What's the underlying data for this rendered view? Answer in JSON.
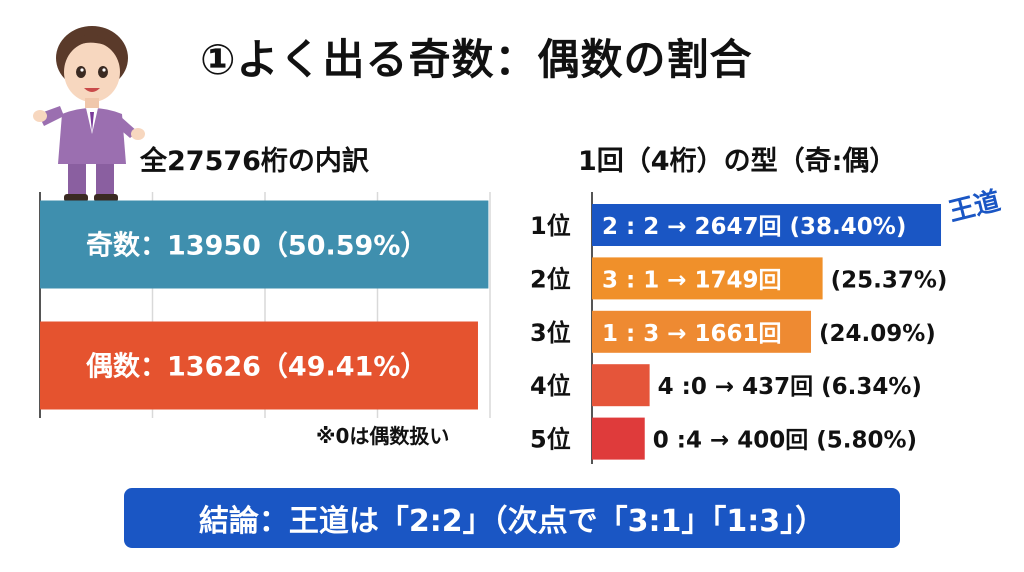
{
  "title": "①よく出る奇数：偶数の割合",
  "left_subtitle": "全27576桁の内訳",
  "right_subtitle": "1回（4桁）の型（奇:偶）",
  "note": "※0は偶数扱い",
  "badge": "王道",
  "conclusion": "結論：王道は「2:2」（次点で「3:1」「1:3」）",
  "colors": {
    "odd": "#3f8fae",
    "even": "#e5532f",
    "rank1": "#1a56c4",
    "rank2": "#f0902a",
    "rank3": "#ee8a32",
    "rank4": "#e5553a",
    "rank5": "#df3b3b",
    "conclusion_bg": "#1a56c4",
    "grid": "#d9d9d9"
  },
  "chart_data": [
    {
      "type": "bar",
      "orientation": "horizontal",
      "title": "全27576桁の内訳",
      "categories": [
        "奇数",
        "偶数"
      ],
      "values": [
        13950,
        13626
      ],
      "percent": [
        "50.59%",
        "49.41%"
      ],
      "labels": [
        "奇数：13950（50.59%）",
        "偶数：13626（49.41%）"
      ],
      "xlim": [
        0,
        14000
      ],
      "grid": true
    },
    {
      "type": "bar",
      "orientation": "horizontal",
      "title": "1回（4桁）の型（奇:偶）",
      "categories": [
        "1位",
        "2位",
        "3位",
        "4位",
        "5位"
      ],
      "patterns": [
        "2 : 2",
        "3 : 1",
        "1 : 3",
        "4 :0",
        "0 :4"
      ],
      "values": [
        2647,
        1749,
        1661,
        437,
        400
      ],
      "percent": [
        "38.40%",
        "25.37%",
        "24.09%",
        "6.34%",
        "5.80%"
      ],
      "inside_labels": [
        "2 : 2  →  2647回  (38.40%)",
        "3 : 1  →  1749回",
        "1 : 3  →  1661回",
        "",
        ""
      ],
      "outside_labels": [
        "",
        "(25.37%)",
        "(24.09%)",
        "4 :0 → 437回 (6.34%)",
        "0 :4 → 400回 (5.80%)"
      ],
      "xlim": [
        0,
        2700
      ],
      "grid": false
    }
  ]
}
